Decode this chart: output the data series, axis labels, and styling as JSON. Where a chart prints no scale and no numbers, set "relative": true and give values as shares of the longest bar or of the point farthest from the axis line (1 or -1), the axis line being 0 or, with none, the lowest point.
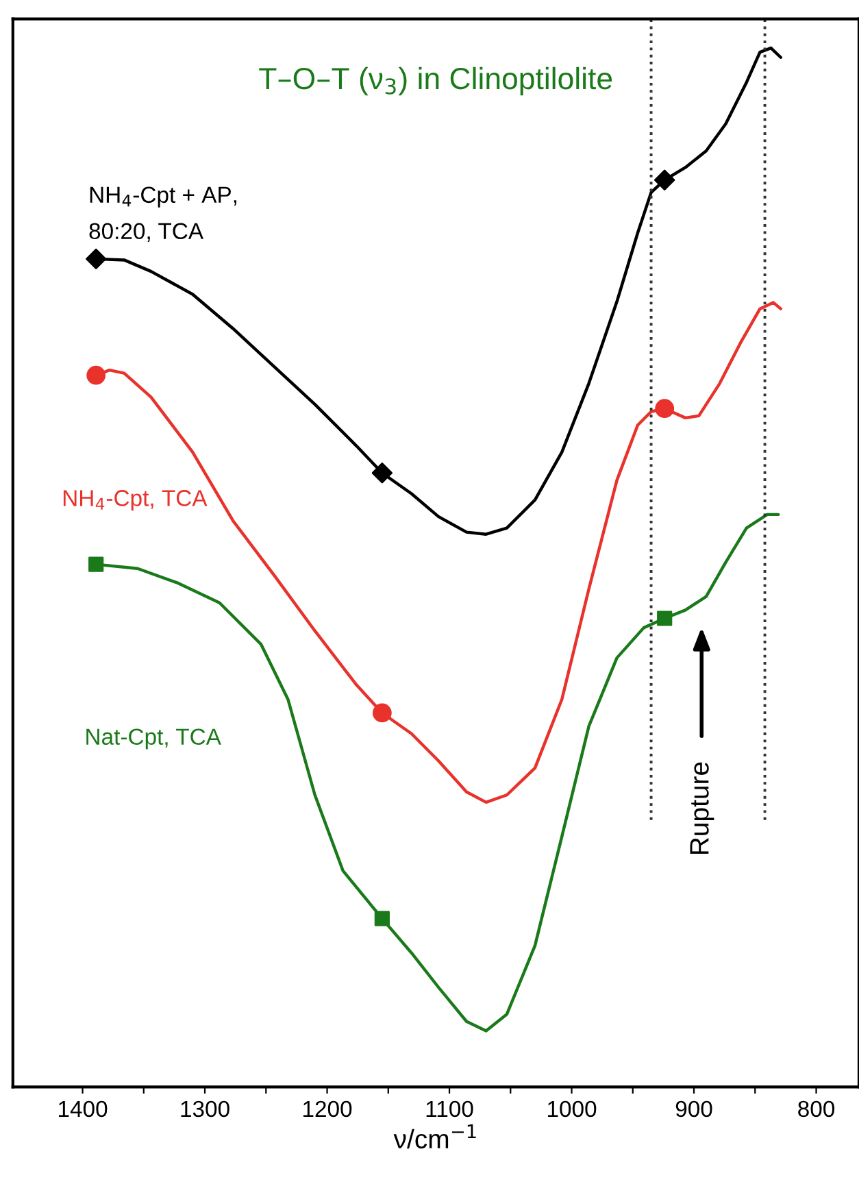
{
  "chart_data": {
    "type": "line",
    "title": "T–O–T (ν$_{3}$) in Clinoptilolite",
    "xlabel": "ν/cm$^{−1}$",
    "relative": true,
    "tick_labels": "x",
    "grid": false,
    "legend": false,
    "line_style": "solid",
    "marker": "none",
    "xlim": [
      1457,
      765
    ],
    "xticks": [
      1400,
      {
        "value": 1350,
        "label": null
      },
      1300,
      {
        "value": 1250,
        "label": null
      },
      1200,
      {
        "value": 1150,
        "label": null
      },
      1100,
      {
        "value": 1050,
        "label": null
      },
      1000,
      {
        "value": 950,
        "label": null
      },
      900,
      {
        "value": 850,
        "label": null
      },
      800
    ],
    "series": [
      {
        "name": "NH$_{4}$-Cpt + AP,\n80:20, TCA",
        "color": "#000000",
        "x": [
          1389,
          1366,
          1344,
          1310,
          1277,
          1243,
          1210,
          1176,
          1155,
          1131,
          1109,
          1086,
          1070,
          1053,
          1030,
          1008,
          986,
          963,
          946,
          935,
          924,
          907,
          890,
          874,
          857,
          846,
          837,
          829
        ],
        "values": [
          0.797,
          0.796,
          0.785,
          0.763,
          0.73,
          0.693,
          0.657,
          0.617,
          0.591,
          0.571,
          0.549,
          0.534,
          0.532,
          0.538,
          0.565,
          0.611,
          0.677,
          0.756,
          0.822,
          0.861,
          0.873,
          0.885,
          0.901,
          0.927,
          0.967,
          0.996,
          1,
          0.991
        ]
      },
      {
        "name": "NH$_{4}$-Cpt, TCA",
        "color": "#e8322b",
        "x": [
          1389,
          1378,
          1366,
          1344,
          1310,
          1277,
          1243,
          1210,
          1176,
          1155,
          1131,
          1109,
          1086,
          1070,
          1053,
          1030,
          1008,
          986,
          963,
          946,
          935,
          924,
          907,
          896,
          879,
          862,
          846,
          835,
          829
        ],
        "values": [
          0.685,
          0.69,
          0.687,
          0.664,
          0.611,
          0.545,
          0.492,
          0.439,
          0.387,
          0.36,
          0.34,
          0.314,
          0.284,
          0.274,
          0.281,
          0.307,
          0.373,
          0.479,
          0.584,
          0.637,
          0.65,
          0.653,
          0.644,
          0.646,
          0.677,
          0.716,
          0.749,
          0.755,
          0.749
        ]
      },
      {
        "name": "Nat-Cpt, TCA",
        "color": "#1a7a1a",
        "x": [
          1389,
          1355,
          1322,
          1288,
          1254,
          1232,
          1210,
          1187,
          1155,
          1131,
          1109,
          1086,
          1070,
          1053,
          1030,
          1008,
          986,
          963,
          941,
          924,
          907,
          890,
          874,
          857,
          840,
          831
        ],
        "values": [
          0.503,
          0.499,
          0.485,
          0.466,
          0.426,
          0.373,
          0.281,
          0.208,
          0.162,
          0.129,
          0.096,
          0.063,
          0.054,
          0.07,
          0.136,
          0.241,
          0.347,
          0.413,
          0.442,
          0.451,
          0.459,
          0.472,
          0.505,
          0.538,
          0.551,
          0.551
        ]
      },
      {
        "type": "scatter",
        "marker": "diamond",
        "color": "#000000",
        "x": [
          1389,
          1155,
          924
        ],
        "values": [
          0.797,
          0.591,
          0.873
        ]
      },
      {
        "type": "scatter",
        "marker": "circle",
        "color": "#e8322b",
        "x": [
          1389,
          1155,
          924
        ],
        "values": [
          0.685,
          0.36,
          0.653
        ]
      },
      {
        "type": "scatter",
        "marker": "square",
        "color": "#1a7a1a",
        "x": [
          1389,
          1155,
          924
        ],
        "values": [
          0.503,
          0.162,
          0.451
        ]
      }
    ],
    "ref_lines": [
      {
        "axis": "x",
        "value": 935,
        "color": "#333333",
        "line_style": "dotted"
      },
      {
        "axis": "x",
        "value": 842,
        "color": "#333333",
        "line_style": "dotted"
      }
    ],
    "annotations": [
      "Rupture"
    ]
  }
}
